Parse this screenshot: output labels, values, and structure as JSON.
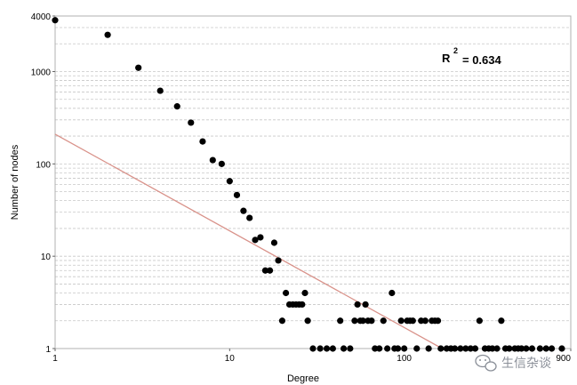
{
  "chart_data": {
    "type": "scatter",
    "xlabel": "Degree",
    "ylabel": "Number of nodes",
    "xscale": "log",
    "yscale": "log",
    "xlim": [
      1,
      900
    ],
    "ylim": [
      1,
      4000
    ],
    "x_ticks": [
      "1",
      "10",
      "100",
      "900"
    ],
    "y_ticks": [
      "1",
      "10",
      "100",
      "1000",
      "4000"
    ],
    "grid": "horizontal dashed",
    "annotation": {
      "text": "R",
      "superscript": "2",
      "value": "= 0.634"
    },
    "fit_line": {
      "color": "#d9928a",
      "points": [
        [
          1,
          210
        ],
        [
          165,
          1
        ]
      ]
    },
    "points_color": "#000000",
    "points": [
      [
        1,
        3600
      ],
      [
        2,
        2500
      ],
      [
        3,
        1100
      ],
      [
        4,
        620
      ],
      [
        5,
        420
      ],
      [
        6,
        280
      ],
      [
        7,
        175
      ],
      [
        8,
        110
      ],
      [
        9,
        100
      ],
      [
        10,
        65
      ],
      [
        11,
        46
      ],
      [
        12,
        31
      ],
      [
        13,
        26
      ],
      [
        14,
        15
      ],
      [
        15,
        16
      ],
      [
        16,
        7
      ],
      [
        17,
        7
      ],
      [
        18,
        14
      ],
      [
        19,
        9
      ],
      [
        20,
        2
      ],
      [
        21,
        4
      ],
      [
        22,
        3
      ],
      [
        23,
        3
      ],
      [
        24,
        3
      ],
      [
        25,
        3
      ],
      [
        26,
        3
      ],
      [
        27,
        4
      ],
      [
        28,
        2
      ],
      [
        30,
        1
      ],
      [
        33,
        1
      ],
      [
        36,
        1
      ],
      [
        39,
        1
      ],
      [
        43,
        2
      ],
      [
        45,
        1
      ],
      [
        49,
        1
      ],
      [
        52,
        2
      ],
      [
        54,
        3
      ],
      [
        56,
        2
      ],
      [
        58,
        2
      ],
      [
        60,
        3
      ],
      [
        62,
        2
      ],
      [
        65,
        2
      ],
      [
        68,
        1
      ],
      [
        72,
        1
      ],
      [
        76,
        2
      ],
      [
        80,
        1
      ],
      [
        85,
        4
      ],
      [
        88,
        1
      ],
      [
        92,
        1
      ],
      [
        96,
        2
      ],
      [
        100,
        1
      ],
      [
        104,
        2
      ],
      [
        108,
        2
      ],
      [
        112,
        2
      ],
      [
        118,
        1
      ],
      [
        125,
        2
      ],
      [
        132,
        2
      ],
      [
        138,
        1
      ],
      [
        144,
        2
      ],
      [
        150,
        2
      ],
      [
        156,
        2
      ],
      [
        162,
        1
      ],
      [
        175,
        1
      ],
      [
        185,
        1
      ],
      [
        195,
        1
      ],
      [
        210,
        1
      ],
      [
        225,
        1
      ],
      [
        240,
        1
      ],
      [
        255,
        1
      ],
      [
        270,
        2
      ],
      [
        290,
        1
      ],
      [
        305,
        1
      ],
      [
        320,
        1
      ],
      [
        340,
        1
      ],
      [
        360,
        2
      ],
      [
        380,
        1
      ],
      [
        400,
        1
      ],
      [
        430,
        1
      ],
      [
        450,
        1
      ],
      [
        470,
        1
      ],
      [
        500,
        1
      ],
      [
        540,
        1
      ],
      [
        600,
        1
      ],
      [
        650,
        1
      ],
      [
        700,
        1
      ],
      [
        800,
        1
      ]
    ]
  },
  "watermark": {
    "icon": "wechat-icon",
    "text": "生信杂谈"
  }
}
